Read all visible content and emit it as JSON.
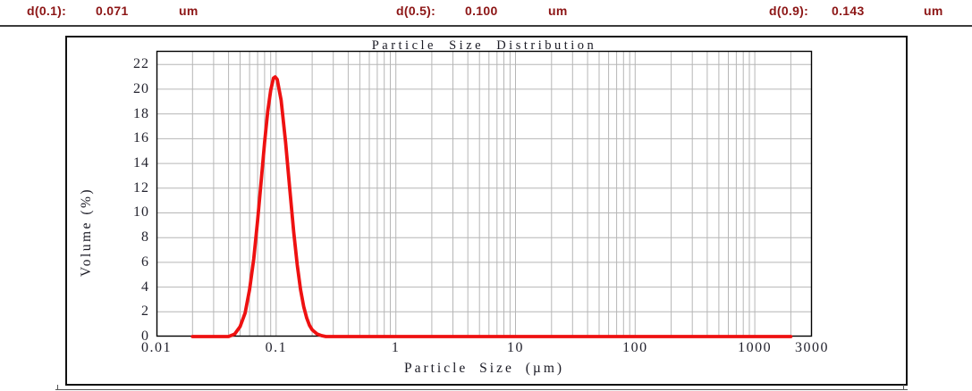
{
  "page": {
    "background": "#ffffff"
  },
  "header": {
    "text_color": "#8c1515",
    "items": [
      {
        "label": "d(0.1):",
        "value": "0.071",
        "unit": "um"
      },
      {
        "label": "d(0.5):",
        "value": "0.100",
        "unit": "um"
      },
      {
        "label": "d(0.9):",
        "value": "0.143",
        "unit": "um"
      }
    ]
  },
  "chart_data": {
    "type": "line",
    "title": "Particle Size Distribution",
    "xlabel": "Particle Size (µm)",
    "ylabel": "Volume (%)",
    "x_scale": "log",
    "xlim": [
      0.01,
      3000
    ],
    "ylim": [
      0,
      23.1
    ],
    "x_ticks": [
      {
        "label": "0.01",
        "value": 0.01
      },
      {
        "label": "0.1",
        "value": 0.1
      },
      {
        "label": "1",
        "value": 1
      },
      {
        "label": "10",
        "value": 10
      },
      {
        "label": "100",
        "value": 100
      },
      {
        "label": "1000",
        "value": 1000
      },
      {
        "label": "3000",
        "value": 3000
      }
    ],
    "y_ticks": [
      0,
      2,
      4,
      6,
      8,
      10,
      12,
      14,
      16,
      18,
      20,
      22
    ],
    "grid": true,
    "legend": null,
    "colors": {
      "curve": "#ee1111",
      "grid": "#b6b6b6",
      "axis": "#000000",
      "tick_text": "#23232e"
    },
    "annotations": {
      "d10": "0.071 um",
      "d50": "0.100 um",
      "d90": "0.143 um",
      "peak_volume_pct": 21,
      "peak_size_um": 0.098
    },
    "series": [
      {
        "name": "Volume (%)",
        "points": [
          [
            0.02,
            0
          ],
          [
            0.03,
            0
          ],
          [
            0.04,
            0
          ],
          [
            0.045,
            0.2
          ],
          [
            0.05,
            0.8
          ],
          [
            0.055,
            1.9
          ],
          [
            0.06,
            3.8
          ],
          [
            0.065,
            6.3
          ],
          [
            0.07,
            9.4
          ],
          [
            0.075,
            12.6
          ],
          [
            0.08,
            15.7
          ],
          [
            0.085,
            18.2
          ],
          [
            0.09,
            19.9
          ],
          [
            0.095,
            20.9
          ],
          [
            0.098,
            21
          ],
          [
            0.102,
            20.8
          ],
          [
            0.11,
            19.1
          ],
          [
            0.12,
            15.7
          ],
          [
            0.13,
            11.9
          ],
          [
            0.14,
            8.5
          ],
          [
            0.15,
            5.8
          ],
          [
            0.16,
            3.8
          ],
          [
            0.17,
            2.4
          ],
          [
            0.18,
            1.5
          ],
          [
            0.19,
            0.9
          ],
          [
            0.2,
            0.55
          ],
          [
            0.22,
            0.2
          ],
          [
            0.24,
            0.07
          ],
          [
            0.26,
            0
          ],
          [
            0.3,
            0
          ],
          [
            0.5,
            0
          ],
          [
            1,
            0
          ],
          [
            2,
            0
          ],
          [
            5,
            0
          ],
          [
            10,
            0
          ],
          [
            20,
            0
          ],
          [
            50,
            0
          ],
          [
            100,
            0
          ],
          [
            200,
            0
          ],
          [
            500,
            0
          ],
          [
            1000,
            0
          ],
          [
            2000,
            0
          ]
        ]
      }
    ]
  }
}
